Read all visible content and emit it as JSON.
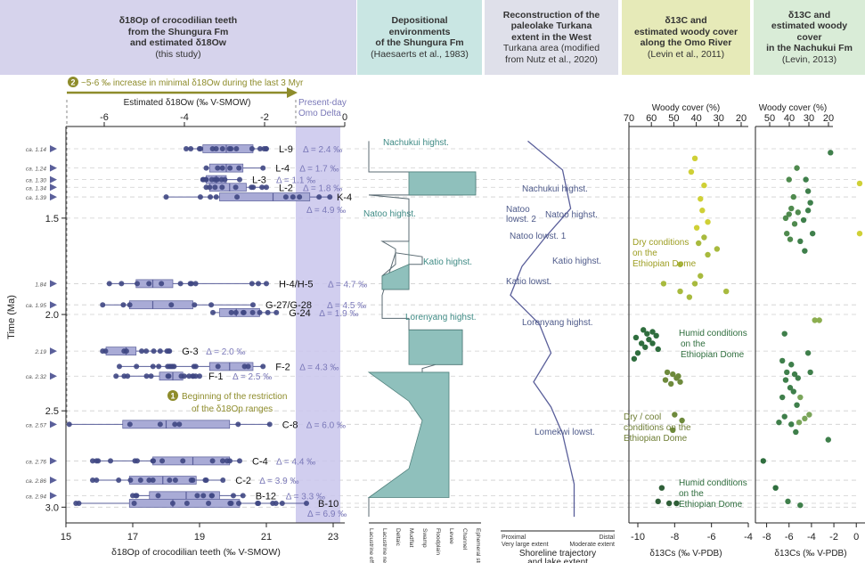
{
  "headers": {
    "h1": {
      "line1": "δ18Op of crocodilian teeth",
      "line2": "from the Shungura Fm",
      "line3": "and estimated δ18Ow",
      "line4": "(this study)",
      "bg": "#d6d3ec"
    },
    "h2": {
      "line1": "Depositional environments",
      "line2": "of the Shungura Fm",
      "line3": "(Haesaerts et al., 1983)",
      "bg": "#c9e6e3"
    },
    "h3": {
      "line1": "Reconstruction of the",
      "line2": "paleolake Turkana",
      "line3": "extent in the West",
      "line4": "Turkana area (modified",
      "line5": "from Nutz et al., 2020)",
      "bg": "#dfe0ea"
    },
    "h4": {
      "line1": "δ13C and",
      "line2": "estimated woody cover",
      "line3": "along the Omo River",
      "line4": "(Levin et al., 2011)",
      "bg": "#e6eab8"
    },
    "h5": {
      "line1": "δ13C and",
      "line2": "estimated woody cover",
      "line3": "in the Nachukui Fm",
      "line4": "(Levin, 2013)",
      "bg": "#d9ecd7"
    }
  },
  "colors": {
    "accent": "#8e8c2b",
    "purple": "#5a5f9a",
    "teal": "#8fc0bc",
    "band": "#c9c6ec"
  },
  "chart_data": [
    {
      "type": "scatter",
      "title": "δ18Op of crocodilian teeth",
      "xlabel": "δ18Op of crocodilian teeth (‰ V-SMOW)",
      "x2label": "Estimated δ18Ow (‰ V-SMOW)",
      "ylabel": "Time (Ma)",
      "xlim": [
        15,
        23
      ],
      "xticks": [
        15,
        17,
        19,
        21,
        23
      ],
      "x2ticks": [
        -6,
        -4,
        -2,
        0
      ],
      "ylim": [
        3.05,
        1.08
      ],
      "yticks": [
        1.5,
        2.0,
        2.5,
        3.0
      ],
      "age_labels": [
        "ca. 1.14",
        "ca. 1.24",
        "ca. 1.30",
        "ca. 1.34",
        "ca. 1.39",
        "1.84",
        "ca. 1.95",
        "2.19",
        "ca. 2.32",
        "ca. 2.57",
        "ca. 2.76",
        "ca. 2.86",
        "ca. 2.94"
      ],
      "annotation_top": "~5-6 ‰ increase in minimal δ18Ow during the last 3 Myr",
      "annotation_mid": "Beginning of the restriction of the δ18Op ranges",
      "annotation_num1": "1",
      "annotation_num2": "2",
      "delta_label": "Present-day Omo Delta",
      "groups": [
        {
          "label": "L-9",
          "delta": "Δ = 2.4 ‰",
          "age": 1.14,
          "min": 18.6,
          "q1": 19.1,
          "med": 19.8,
          "q3": 20.6,
          "max": 21.0
        },
        {
          "label": "L-4",
          "delta": "Δ = 1.7 ‰",
          "age": 1.24,
          "min": 19.2,
          "q1": 19.3,
          "med": 19.8,
          "q3": 20.3,
          "max": 20.9
        },
        {
          "label": "L-3",
          "delta": "Δ = 1.1 ‰",
          "age": 1.3,
          "min": 19.1,
          "q1": 19.2,
          "med": 19.5,
          "q3": 19.8,
          "max": 20.2
        },
        {
          "label": "L-2",
          "delta": "Δ = 1.8 ‰",
          "age": 1.34,
          "min": 19.2,
          "q1": 19.3,
          "med": 19.9,
          "q3": 20.4,
          "max": 21.0
        },
        {
          "label": "K-4",
          "delta": "Δ = 4.9 ‰",
          "age": 1.39,
          "min": 18.0,
          "q1": 19.6,
          "med": 21.2,
          "q3": 22.3,
          "max": 22.9
        },
        {
          "label": "H-4/H-5",
          "delta": "Δ = 4.7 ‰",
          "age": 1.84,
          "min": 16.3,
          "q1": 17.1,
          "med": 17.6,
          "q3": 18.2,
          "max": 21.0
        },
        {
          "label": "G-27/G-28",
          "delta": "Δ = 4.5 ‰",
          "age": 1.95,
          "min": 16.1,
          "q1": 16.9,
          "med": 17.6,
          "q3": 18.8,
          "max": 20.6
        },
        {
          "label": "G-24",
          "delta": "Δ = 1.9 ‰",
          "age": 1.99,
          "min": 19.4,
          "q1": 19.6,
          "med": 20.1,
          "q3": 20.8,
          "max": 21.3
        },
        {
          "label": "G-3",
          "delta": "Δ = 2.0 ‰",
          "age": 2.19,
          "min": 16.1,
          "q1": 16.2,
          "med": 16.8,
          "q3": 17.1,
          "max": 18.1
        },
        {
          "label": "F-2",
          "delta": "Δ = 4.3 ‰",
          "age": 2.27,
          "min": 16.6,
          "q1": 19.3,
          "med": 19.9,
          "q3": 20.6,
          "max": 20.9
        },
        {
          "label": "F-1",
          "delta": "Δ = 2.5 ‰",
          "age": 2.32,
          "min": 16.5,
          "q1": 17.8,
          "med": 18.2,
          "q3": 18.5,
          "max": 19.0
        },
        {
          "label": "C-8",
          "delta": "Δ = 6.0 ‰",
          "age": 2.57,
          "min": 15.1,
          "q1": 16.7,
          "med": 18.0,
          "q3": 19.9,
          "max": 21.1
        },
        {
          "label": "C-4",
          "delta": "Δ = 4.4 ‰",
          "age": 2.76,
          "min": 15.8,
          "q1": 17.6,
          "med": 18.8,
          "q3": 19.9,
          "max": 20.2
        },
        {
          "label": "C-2",
          "delta": "Δ = 3.9 ‰",
          "age": 2.86,
          "min": 15.8,
          "q1": 16.9,
          "med": 17.9,
          "q3": 18.9,
          "max": 19.7
        },
        {
          "label": "B-12",
          "delta": "Δ = 3.3 ‰",
          "age": 2.94,
          "min": 17.0,
          "q1": 17.5,
          "med": 18.6,
          "q3": 19.6,
          "max": 20.3
        },
        {
          "label": "B-10",
          "delta": "Δ = 6.9 ‰",
          "age": 2.98,
          "min": 15.3,
          "q1": 16.9,
          "med": 18.2,
          "q3": 20.2,
          "max": 22.2
        }
      ]
    },
    {
      "type": "area",
      "title": "Depositional environments of the Shungura Fm",
      "xcategories": [
        "Lacustrine offshore",
        "Lacustrine nearshore",
        "Deltaic",
        "Mudflat",
        "Swamp",
        "Floodplain",
        "Levee",
        "Channel",
        "Ephemeral stream"
      ],
      "labels": [
        "Nachukui highst.",
        "Natoo highst.",
        "Katio highst.",
        "Lorenyang highst."
      ]
    },
    {
      "type": "line",
      "title": "Reconstruction of the paleolake Turkana extent",
      "xlabel": "Shoreline trajectory and lake extent",
      "xleft": "Proximal Very large extent",
      "xright": "Distal Moderate extent",
      "labels": [
        "Nachukui highst.",
        "Natoo lowst. 2",
        "Natoo highst.",
        "Natoo lowst. 1",
        "Katio highst.",
        "Katio lowst.",
        "Lorenyang highst.",
        "Lomekwi lowst."
      ]
    },
    {
      "type": "scatter",
      "title": "δ13C and estimated woody cover along the Omo River",
      "xlabel": "δ13Cs (‰ V-PDB)",
      "x2label": "Woody cover (%)",
      "xticks": [
        -10,
        -8,
        -6,
        -4
      ],
      "x2ticks": [
        70,
        60,
        50,
        40,
        30,
        20
      ],
      "text_labels": [
        "Dry conditions on the Ethiopian Dome",
        "Humid conditions on the Ethiopian Dome",
        "Dry / cool conditions on the Ethiopian Dome",
        "Humid conditions on the Ethiopian Dome"
      ],
      "points": [
        [
          -6.9,
          1.19
        ],
        [
          -7.1,
          1.26
        ],
        [
          -6.4,
          1.33
        ],
        [
          -6.6,
          1.4
        ],
        [
          -6.5,
          1.46
        ],
        [
          -6.2,
          1.52
        ],
        [
          -6.8,
          1.55
        ],
        [
          -6.4,
          1.6
        ],
        [
          -6.7,
          1.63
        ],
        [
          -5.7,
          1.66
        ],
        [
          -6.2,
          1.69
        ],
        [
          -7.7,
          1.74
        ],
        [
          -6.6,
          1.8
        ],
        [
          -6.9,
          1.84
        ],
        [
          -8.6,
          1.84
        ],
        [
          -7.7,
          1.88
        ],
        [
          -7.2,
          1.91
        ],
        [
          -5.2,
          1.88
        ],
        [
          -9.7,
          2.08
        ],
        [
          -9.5,
          2.1
        ],
        [
          -9.2,
          2.09
        ],
        [
          -9.0,
          2.11
        ],
        [
          -9.4,
          2.13
        ],
        [
          -10.1,
          2.12
        ],
        [
          -9.8,
          2.15
        ],
        [
          -9.2,
          2.15
        ],
        [
          -9.6,
          2.17
        ],
        [
          -10.0,
          2.2
        ],
        [
          -10.2,
          2.23
        ],
        [
          -8.9,
          2.18
        ],
        [
          -8.4,
          2.3
        ],
        [
          -8.1,
          2.31
        ],
        [
          -7.8,
          2.32
        ],
        [
          -8.5,
          2.34
        ],
        [
          -7.9,
          2.33
        ],
        [
          -7.7,
          2.35
        ],
        [
          -8.2,
          2.36
        ],
        [
          -8.0,
          2.52
        ],
        [
          -7.6,
          2.55
        ],
        [
          -8.1,
          2.6
        ],
        [
          -8.7,
          2.9
        ],
        [
          -8.9,
          2.97
        ],
        [
          -7.9,
          2.98
        ],
        [
          -8.3,
          2.98
        ]
      ]
    },
    {
      "type": "scatter",
      "title": "δ13C and estimated woody cover in the Nachukui Fm",
      "xlabel": "δ13Cs (‰ V-PDB)",
      "x2label": "Woody cover (%)",
      "xticks": [
        -8,
        -6,
        -4,
        -2,
        0
      ],
      "x2ticks": [
        50,
        40,
        30,
        20
      ],
      "points": [
        [
          -2.3,
          1.16
        ],
        [
          -5.3,
          1.24
        ],
        [
          -4.5,
          1.3
        ],
        [
          -6.0,
          1.3
        ],
        [
          -4.3,
          1.36
        ],
        [
          -5.6,
          1.39
        ],
        [
          -4.1,
          1.42
        ],
        [
          -5.8,
          1.45
        ],
        [
          -4.3,
          1.46
        ],
        [
          -6.0,
          1.48
        ],
        [
          -5.2,
          1.47
        ],
        [
          -6.3,
          1.5
        ],
        [
          -5.5,
          1.53
        ],
        [
          -4.7,
          1.51
        ],
        [
          -6.2,
          1.58
        ],
        [
          -5.0,
          1.62
        ],
        [
          -4.6,
          1.67
        ],
        [
          -5.9,
          1.61
        ],
        [
          -3.9,
          1.58
        ],
        [
          0.3,
          1.32
        ],
        [
          0.3,
          1.58
        ],
        [
          -3.7,
          2.03
        ],
        [
          -3.3,
          2.03
        ],
        [
          -6.4,
          2.1
        ],
        [
          -4.3,
          2.2
        ],
        [
          -6.6,
          2.24
        ],
        [
          -6.2,
          2.3
        ],
        [
          -5.8,
          2.26
        ],
        [
          -5.5,
          2.31
        ],
        [
          -5.2,
          2.33
        ],
        [
          -6.3,
          2.34
        ],
        [
          -5.9,
          2.38
        ],
        [
          -5.6,
          2.4
        ],
        [
          -5.0,
          2.43
        ],
        [
          -6.6,
          2.43
        ],
        [
          -5.3,
          2.47
        ],
        [
          -6.4,
          2.53
        ],
        [
          -5.1,
          2.56
        ],
        [
          -4.6,
          2.54
        ],
        [
          -5.8,
          2.57
        ],
        [
          -4.2,
          2.52
        ],
        [
          -5.4,
          2.61
        ],
        [
          -6.9,
          2.56
        ],
        [
          -2.5,
          2.65
        ],
        [
          -4.1,
          2.3
        ],
        [
          -8.3,
          2.76
        ],
        [
          -7.2,
          2.9
        ],
        [
          -6.1,
          2.97
        ],
        [
          -5.0,
          2.99
        ]
      ]
    }
  ]
}
